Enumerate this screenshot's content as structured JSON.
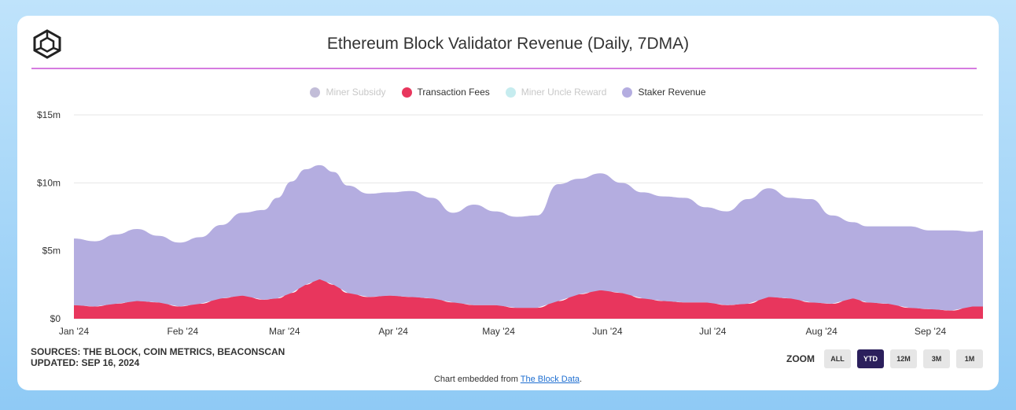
{
  "header": {
    "title": "Ethereum Block Validator Revenue (Daily, 7DMA)",
    "logo_icon": "the-block-cube-logo-icon"
  },
  "colors": {
    "staker": "#b4ade0",
    "fees": "#e8365d",
    "subsidy": "#c2bdd8",
    "uncle": "#c6ecef",
    "accent_line": "#d67be0",
    "zoom_active": "#2b1f5c"
  },
  "legend": [
    {
      "label": "Miner Subsidy",
      "active": false,
      "color": "#c2bdd8"
    },
    {
      "label": "Transaction Fees",
      "active": true,
      "color": "#e8365d"
    },
    {
      "label": "Miner Uncle Reward",
      "active": false,
      "color": "#c6ecef"
    },
    {
      "label": "Staker Revenue",
      "active": true,
      "color": "#b4ade0"
    }
  ],
  "chart_data": {
    "type": "area",
    "stacked": true,
    "title": "Ethereum Block Validator Revenue (Daily, 7DMA)",
    "xlabel": "",
    "ylabel": "",
    "ylim": [
      0,
      15
    ],
    "yticks": [
      0,
      5,
      10,
      15
    ],
    "ytick_labels": [
      "$0",
      "$5m",
      "$10m",
      "$15m"
    ],
    "grid": true,
    "legend_position": "top-center",
    "x_start": "Jan 1 2024",
    "x_end": "Sep 16 2024",
    "xtick_days": [
      0,
      31,
      60,
      91,
      121,
      152,
      182,
      213,
      244
    ],
    "xtick_labels": [
      "Jan '24",
      "Feb '24",
      "Mar '24",
      "Apr '24",
      "May '24",
      "Jun '24",
      "Jul '24",
      "Aug '24",
      "Sep '24"
    ],
    "series": [
      {
        "name": "Transaction Fees",
        "days": [
          0,
          6,
          12,
          18,
          24,
          30,
          36,
          42,
          48,
          54,
          58,
          62,
          66,
          70,
          74,
          78,
          84,
          90,
          96,
          102,
          108,
          114,
          120,
          126,
          132,
          138,
          144,
          150,
          156,
          162,
          168,
          174,
          180,
          186,
          192,
          198,
          204,
          210,
          216,
          222,
          226,
          232,
          238,
          244,
          250,
          256,
          259
        ],
        "values": [
          1.0,
          0.9,
          1.1,
          1.3,
          1.2,
          0.9,
          1.1,
          1.5,
          1.7,
          1.4,
          1.5,
          1.9,
          2.5,
          2.9,
          2.5,
          1.9,
          1.6,
          1.7,
          1.6,
          1.5,
          1.2,
          1.0,
          1.0,
          0.8,
          0.8,
          1.3,
          1.8,
          2.1,
          1.9,
          1.5,
          1.3,
          1.2,
          1.2,
          1.0,
          1.1,
          1.6,
          1.5,
          1.2,
          1.1,
          1.5,
          1.2,
          1.1,
          0.8,
          0.7,
          0.6,
          0.9,
          0.9
        ]
      },
      {
        "name": "Staker Revenue",
        "days": [
          0,
          6,
          12,
          18,
          24,
          30,
          36,
          42,
          48,
          54,
          58,
          62,
          66,
          70,
          74,
          78,
          84,
          90,
          96,
          102,
          108,
          114,
          120,
          126,
          132,
          138,
          144,
          150,
          156,
          162,
          168,
          174,
          180,
          186,
          192,
          198,
          204,
          210,
          216,
          222,
          226,
          232,
          238,
          244,
          250,
          256,
          259
        ],
        "values": [
          4.9,
          4.8,
          5.1,
          5.3,
          4.9,
          4.7,
          4.9,
          5.4,
          6.1,
          6.6,
          7.4,
          8.2,
          8.5,
          8.4,
          8.3,
          7.9,
          7.6,
          7.6,
          7.8,
          7.4,
          6.6,
          7.4,
          6.9,
          6.7,
          6.8,
          8.6,
          8.5,
          8.6,
          8.1,
          7.8,
          7.7,
          7.7,
          7.0,
          6.9,
          7.7,
          8.0,
          7.4,
          7.6,
          6.5,
          5.6,
          5.6,
          5.7,
          6.0,
          5.8,
          5.9,
          5.5,
          5.6
        ]
      }
    ]
  },
  "footer": {
    "sources": "SOURCES: THE BLOCK, COIN METRICS, BEACONSCAN",
    "updated": "UPDATED: SEP 16, 2024",
    "embed_prefix": "Chart embedded from ",
    "embed_link": "The Block Data",
    "embed_suffix": "."
  },
  "zoom": {
    "label": "ZOOM",
    "options": [
      "ALL",
      "YTD",
      "12M",
      "3M",
      "1M"
    ],
    "selected": "YTD"
  }
}
